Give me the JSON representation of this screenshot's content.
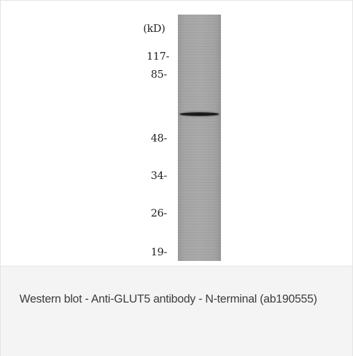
{
  "blot": {
    "unit_label": "(kD)",
    "markers": [
      "117-",
      "85-",
      "48-",
      "34-",
      "26-",
      "19-"
    ]
  },
  "caption": {
    "text": "Western blot - Anti-GLUT5 antibody - N-terminal (ab190555)"
  }
}
